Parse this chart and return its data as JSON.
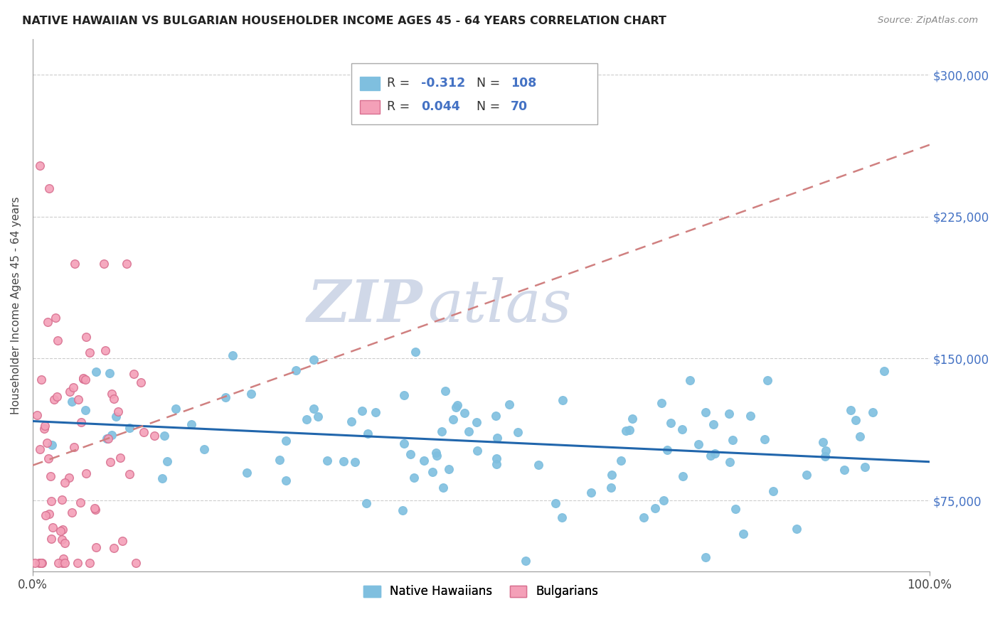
{
  "title": "NATIVE HAWAIIAN VS BULGARIAN HOUSEHOLDER INCOME AGES 45 - 64 YEARS CORRELATION CHART",
  "source": "Source: ZipAtlas.com",
  "ylabel": "Householder Income Ages 45 - 64 years",
  "xlim": [
    0,
    1
  ],
  "ylim": [
    37500,
    318750
  ],
  "yticks": [
    75000,
    150000,
    225000,
    300000
  ],
  "ytick_labels": [
    "$75,000",
    "$150,000",
    "$225,000",
    "$300,000"
  ],
  "xtick_labels": [
    "0.0%",
    "100.0%"
  ],
  "color_nh": "#7fbfdf",
  "color_bg": "#f4a0b8",
  "color_line_nh": "#2166ac",
  "color_line_bg": "#d08080",
  "r_nh": -0.312,
  "n_nh": 108,
  "r_bg": 0.044,
  "n_bg": 70,
  "watermark_zip": "ZIP",
  "watermark_atlas": "atlas",
  "watermark_color": "#d0d8e8",
  "watermark_size": 60
}
